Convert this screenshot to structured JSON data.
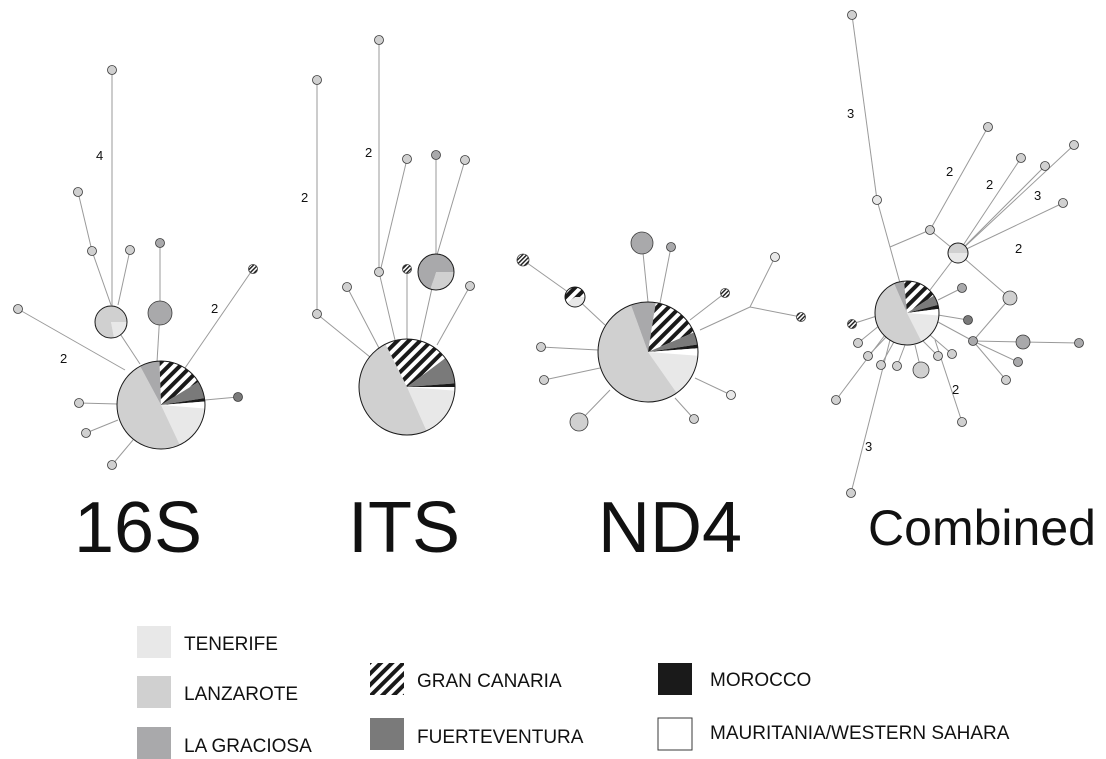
{
  "colors": {
    "tenerife": "#e8e8e8",
    "lanzarote": "#d0d0d0",
    "la_graciosa": "#a9a9ab",
    "fuerteventura": "#7a7a7a",
    "morocco": "#1a1a1a",
    "mauritania": "#ffffff",
    "gran_canaria_hatch": "#1a1a1a"
  },
  "panels": [
    {
      "id": "16s",
      "label": "16S",
      "edge_labels": [
        "4",
        "2",
        "2"
      ]
    },
    {
      "id": "its",
      "label": "ITS",
      "edge_labels": [
        "2",
        "2"
      ]
    },
    {
      "id": "nd4",
      "label": "ND4",
      "edge_labels": []
    },
    {
      "id": "combined",
      "label": "Combined",
      "edge_labels": [
        "3",
        "2",
        "2",
        "3",
        "2",
        "2",
        "3"
      ]
    }
  ],
  "legend": [
    {
      "key": "tenerife",
      "label": "TENERIFE",
      "fill": "tenerife"
    },
    {
      "key": "lanzarote",
      "label": "LANZAROTE",
      "fill": "lanzarote"
    },
    {
      "key": "la_graciosa",
      "label": "LA GRACIOSA",
      "fill": "la_graciosa"
    },
    {
      "key": "gran_canaria",
      "label": "GRAN CANARIA",
      "fill": "hatch"
    },
    {
      "key": "fuerteventura",
      "label": "FUERTEVENTURA",
      "fill": "fuerteventura"
    },
    {
      "key": "morocco",
      "label": "MOROCCO",
      "fill": "morocco"
    },
    {
      "key": "mauritania",
      "label": "MAURITANIA/WESTERN SAHARA",
      "fill": "mauritania"
    }
  ]
}
